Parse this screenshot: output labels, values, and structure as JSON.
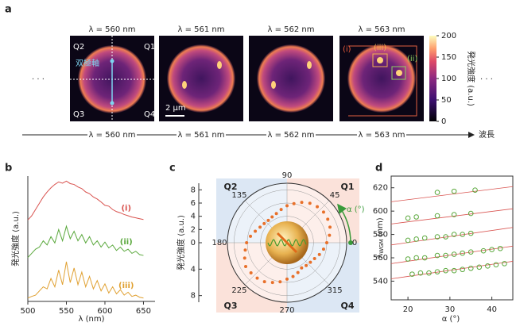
{
  "panel_a": {
    "label": "a",
    "ellipsis_left": "· · ·",
    "ellipsis_right": "· · ·",
    "images": [
      {
        "title": "λ = 560 nm"
      },
      {
        "title": "λ = 561 nm"
      },
      {
        "title": "λ = 562 nm"
      },
      {
        "title": "λ = 563 nm"
      }
    ],
    "quadrants": [
      "Q1",
      "Q2",
      "Q3",
      "Q4"
    ],
    "axis_label": "双極軸",
    "scale_bar": "2 μm",
    "regions": [
      "(i)",
      "(ii)",
      "(iii)"
    ],
    "colorbar": {
      "label": "発光強度 (a.u.)",
      "lim": [
        0,
        200
      ],
      "ticks": [
        0,
        50,
        100,
        150,
        200
      ]
    },
    "wavelength_axis": {
      "labels": [
        "λ = 560 nm",
        "λ = 561 nm",
        "λ = 562 nm",
        "λ = 563 nm"
      ],
      "end_label": "波長"
    }
  },
  "chart_data": [
    {
      "type": "line",
      "panel": "b",
      "xlabel": "λ (nm)",
      "ylabel": "発光強度 (a.u.)",
      "x": [
        500,
        505,
        510,
        515,
        520,
        525,
        530,
        535,
        540,
        545,
        550,
        555,
        560,
        565,
        570,
        575,
        580,
        585,
        590,
        595,
        600,
        605,
        610,
        615,
        620,
        625,
        630,
        635,
        640,
        645,
        650
      ],
      "xlim": [
        500,
        665
      ],
      "xticks": [
        500,
        550,
        600,
        650
      ],
      "ylim": [
        0,
        3
      ],
      "series": [
        {
          "name": "(i)",
          "color": "#d9534f",
          "values": [
            1.95,
            2.05,
            2.2,
            2.35,
            2.5,
            2.62,
            2.72,
            2.8,
            2.86,
            2.83,
            2.88,
            2.82,
            2.8,
            2.74,
            2.7,
            2.62,
            2.58,
            2.5,
            2.45,
            2.38,
            2.3,
            2.28,
            2.2,
            2.15,
            2.12,
            2.08,
            2.05,
            2.02,
            2.0,
            1.98,
            1.96
          ]
        },
        {
          "name": "(ii)",
          "color": "#5aa83c",
          "values": [
            1.05,
            1.15,
            1.25,
            1.3,
            1.45,
            1.35,
            1.55,
            1.4,
            1.72,
            1.45,
            1.8,
            1.5,
            1.68,
            1.45,
            1.6,
            1.4,
            1.55,
            1.35,
            1.45,
            1.3,
            1.42,
            1.28,
            1.35,
            1.22,
            1.3,
            1.2,
            1.25,
            1.15,
            1.2,
            1.12,
            1.1
          ]
        },
        {
          "name": "(iii)",
          "color": "#e0a030",
          "values": [
            0.08,
            0.12,
            0.15,
            0.25,
            0.35,
            0.3,
            0.55,
            0.35,
            0.75,
            0.4,
            0.95,
            0.45,
            0.8,
            0.4,
            0.7,
            0.35,
            0.6,
            0.3,
            0.5,
            0.25,
            0.42,
            0.2,
            0.35,
            0.18,
            0.28,
            0.15,
            0.22,
            0.12,
            0.15,
            0.1,
            0.08
          ]
        }
      ]
    },
    {
      "type": "polar",
      "panel": "c",
      "ylabel": "発光強度 (a.u.)",
      "angle_label": "α (°)",
      "quadrants": [
        "Q1",
        "Q2",
        "Q3",
        "Q4"
      ],
      "thetaticks": [
        0,
        45,
        90,
        135,
        180,
        225,
        270,
        315
      ],
      "ylim": [
        -9,
        9
      ],
      "yticks": [
        8,
        6,
        4,
        2,
        0,
        {
          "value": -4,
          "label": "4"
        },
        {
          "value": -8,
          "label": "8"
        }
      ],
      "color": "#e8702a",
      "theta": [
        0,
        10,
        20,
        30,
        40,
        50,
        60,
        70,
        80,
        90,
        100,
        110,
        120,
        130,
        140,
        150,
        160,
        170,
        180,
        190,
        200,
        210,
        220,
        230,
        240,
        250,
        260,
        270,
        280,
        290,
        300,
        310,
        320,
        330,
        340,
        350
      ],
      "values": [
        6.0,
        6.5,
        6.9,
        7.1,
        7.2,
        7.1,
        6.9,
        6.5,
        6.0,
        5.6,
        5.1,
        4.7,
        4.5,
        4.4,
        4.5,
        4.7,
        5.1,
        5.6,
        6.1,
        6.4,
        6.8,
        7.2,
        7.1,
        7.0,
        6.8,
        6.4,
        6.0,
        5.5,
        5.2,
        4.8,
        4.4,
        4.5,
        4.6,
        4.8,
        5.2,
        5.6
      ]
    },
    {
      "type": "scatter",
      "panel": "d",
      "xlabel": "α (°)",
      "ylabel": "λ",
      "ylabel_sub": "WGM",
      "ylabel_unit": " (nm)",
      "xlim": [
        16,
        45
      ],
      "xticks": [
        20,
        30,
        40
      ],
      "ylim": [
        524,
        630
      ],
      "yticks": [
        540,
        560,
        580,
        600,
        620
      ],
      "series": [
        {
          "color": "#5aa83c",
          "x": [
            27,
            31,
            36
          ],
          "values": [
            616,
            617,
            618
          ]
        },
        {
          "color": "#5aa83c",
          "x": [
            20,
            22,
            27,
            31,
            35
          ],
          "values": [
            594,
            595,
            596,
            597,
            598
          ]
        },
        {
          "color": "#5aa83c",
          "x": [
            20,
            22,
            24,
            27,
            29,
            31,
            33,
            35
          ],
          "values": [
            575,
            576,
            577,
            578,
            578,
            580,
            580,
            581
          ]
        },
        {
          "color": "#5aa83c",
          "x": [
            20,
            22,
            24,
            27,
            29,
            31,
            33,
            35,
            38,
            40,
            42
          ],
          "values": [
            559,
            560,
            560,
            562,
            562,
            563,
            564,
            565,
            566,
            567,
            568
          ]
        },
        {
          "color": "#5aa83c",
          "x": [
            21,
            23,
            25,
            27,
            29,
            31,
            33,
            35,
            37,
            39,
            41,
            43
          ],
          "values": [
            546,
            547,
            547,
            548,
            549,
            549,
            550,
            551,
            552,
            553,
            554,
            555
          ]
        }
      ],
      "fits": [
        {
          "color": "#d9534f",
          "x": [
            16,
            45
          ],
          "values": [
            608,
            621
          ]
        },
        {
          "color": "#d9534f",
          "x": [
            16,
            45
          ],
          "values": [
            589,
            602
          ]
        },
        {
          "color": "#d9534f",
          "x": [
            16,
            45
          ],
          "values": [
            571,
            586
          ]
        },
        {
          "color": "#d9534f",
          "x": [
            16,
            45
          ],
          "values": [
            555,
            570
          ]
        },
        {
          "color": "#d9534f",
          "x": [
            16,
            45
          ],
          "values": [
            542,
            557
          ]
        }
      ]
    }
  ]
}
